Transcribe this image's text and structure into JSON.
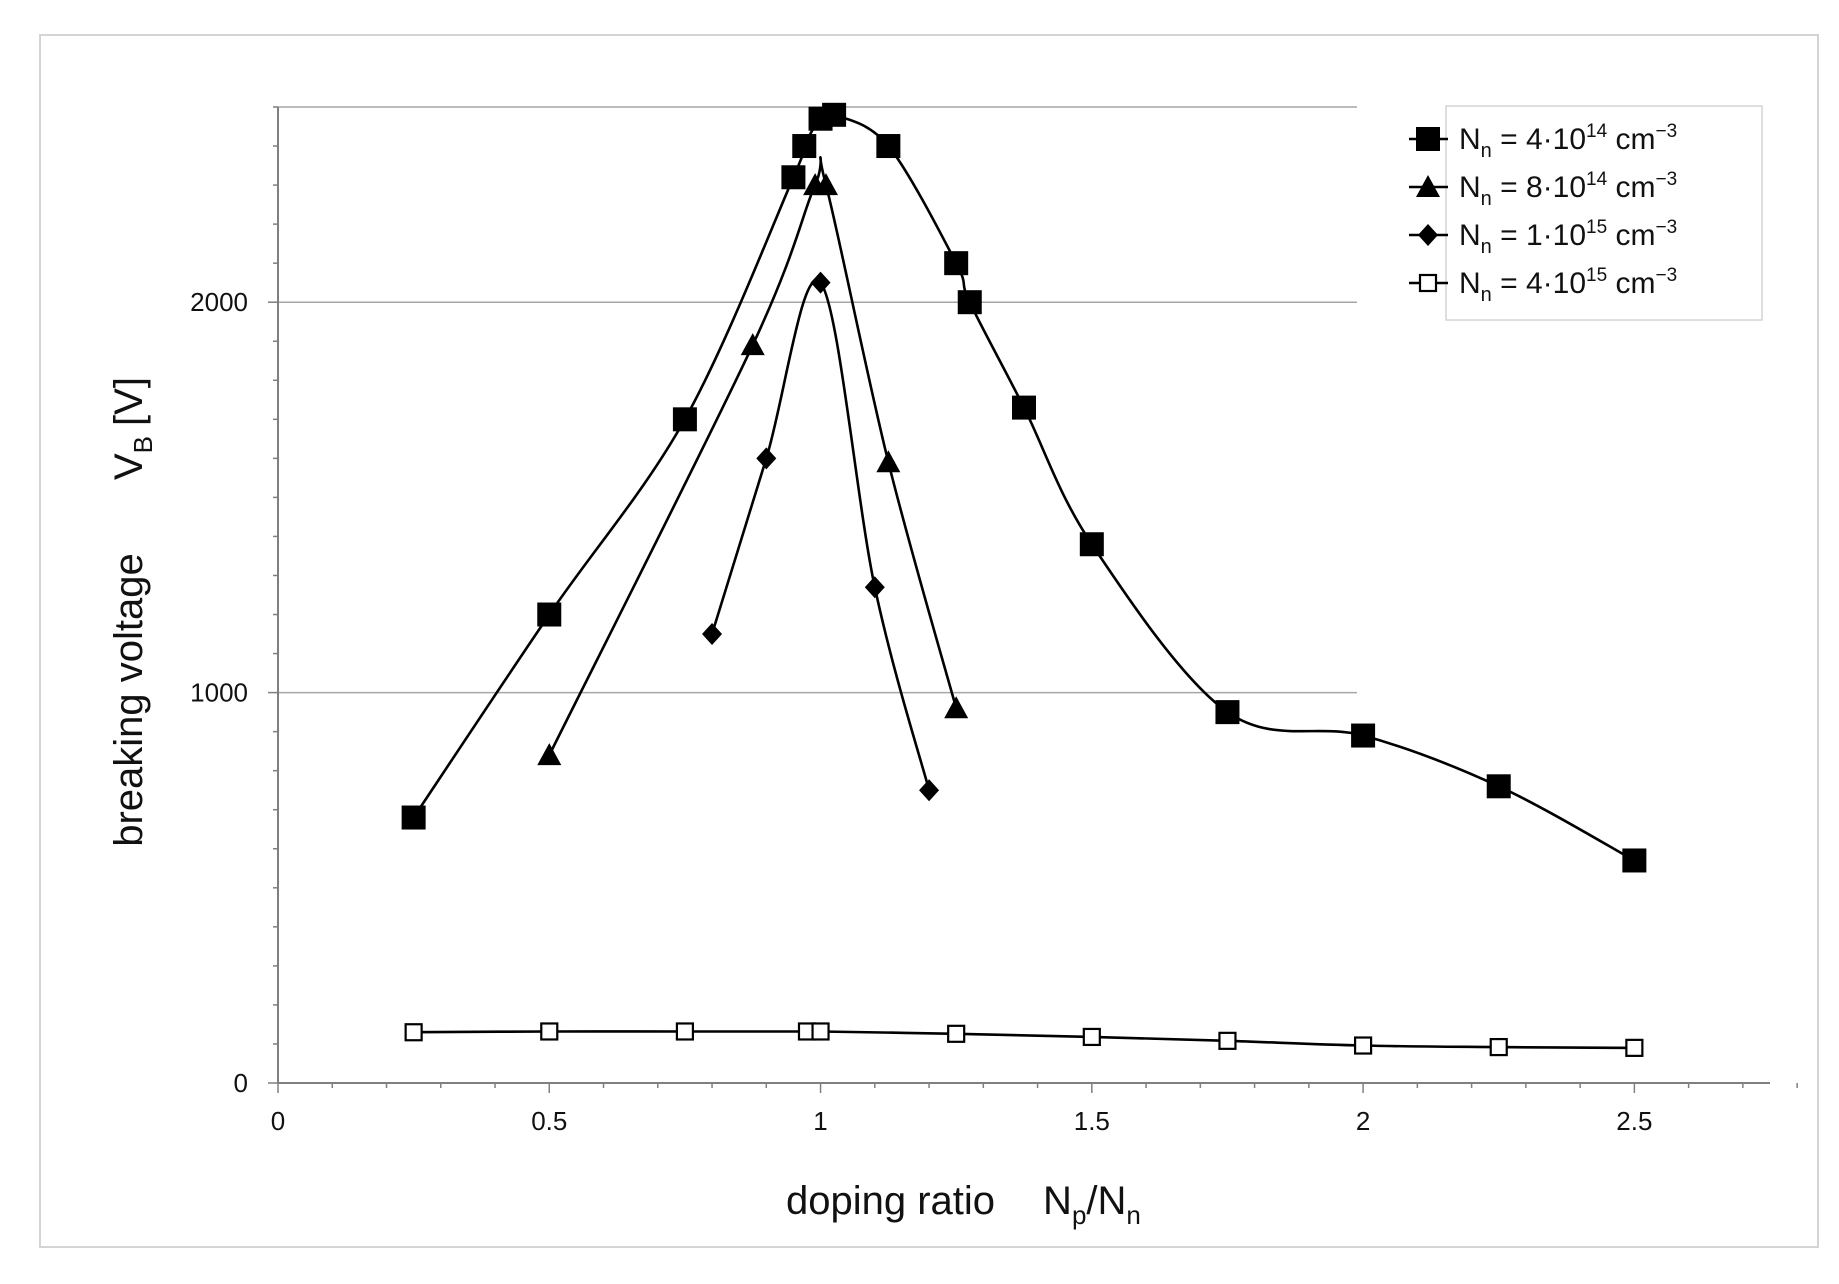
{
  "chart_data": {
    "type": "line",
    "xlabel": "doping ratio",
    "xlabel_symbol": "N_p/N_n",
    "ylabel": "breaking voltage",
    "ylabel_symbol": "V_B [V]",
    "xlim": [
      0,
      2.75
    ],
    "ylim": [
      0,
      2500
    ],
    "x_ticks": [
      0,
      0.5,
      1,
      1.5,
      2,
      2.5
    ],
    "x_tick_labels": [
      "0",
      "0.5",
      "1",
      "1.5",
      "2",
      "2.5"
    ],
    "y_ticks": [
      0,
      1000,
      2000
    ],
    "y_tick_labels": [
      "0",
      "1000",
      "2000"
    ],
    "grid": "horizontal major lines at 1000 and 2000",
    "legend_position": "top-right",
    "series": [
      {
        "name": "N_n = 4·10^14 cm^-3",
        "legend": {
          "var": "N",
          "sub": "n",
          "eq": " = 4·10",
          "exp": "14",
          "unit": " cm",
          "unit_exp": "−3"
        },
        "marker": "filled-square",
        "x": [
          0.25,
          0.5,
          0.75,
          0.95,
          0.97,
          1.0,
          1.025,
          1.125,
          1.25,
          1.275,
          1.375,
          1.5,
          1.75,
          2.0,
          2.25,
          2.5
        ],
        "y": [
          680,
          1200,
          1700,
          2320,
          2400,
          2470,
          2480,
          2400,
          2100,
          2000,
          1730,
          1380,
          950,
          890,
          760,
          570
        ]
      },
      {
        "name": "N_n = 8·10^14 cm^-3",
        "legend": {
          "var": "N",
          "sub": "n",
          "eq": " = 8·10",
          "exp": "14",
          "unit": " cm",
          "unit_exp": "−3"
        },
        "marker": "filled-triangle",
        "x": [
          0.5,
          0.875,
          0.99,
          1.01,
          1.125,
          1.25
        ],
        "y": [
          840,
          1890,
          2300,
          2300,
          1590,
          960
        ]
      },
      {
        "name": "N_n = 1·10^15 cm^-3",
        "legend": {
          "var": "N",
          "sub": "n",
          "eq": " = 1·10",
          "exp": "15",
          "unit": " cm",
          "unit_exp": "−3"
        },
        "marker": "filled-diamond",
        "x": [
          0.8,
          0.9,
          1.0,
          1.1,
          1.2
        ],
        "y": [
          1150,
          1600,
          2050,
          1270,
          750
        ]
      },
      {
        "name": "N_n = 4·10^15 cm^-3",
        "legend": {
          "var": "N",
          "sub": "n",
          "eq": " = 4·10",
          "exp": "15",
          "unit": " cm",
          "unit_exp": "−3"
        },
        "marker": "open-square",
        "x": [
          0.25,
          0.5,
          0.75,
          0.975,
          1.0,
          1.25,
          1.5,
          1.75,
          2.0,
          2.25,
          2.5
        ],
        "y": [
          130,
          132,
          132,
          132,
          132,
          126,
          118,
          108,
          96,
          92,
          90
        ]
      }
    ]
  },
  "colors": {
    "line": "#000000",
    "grid": "#a6a6a6",
    "axis": "#7f7f7f",
    "frame": "#d4d4d4"
  }
}
